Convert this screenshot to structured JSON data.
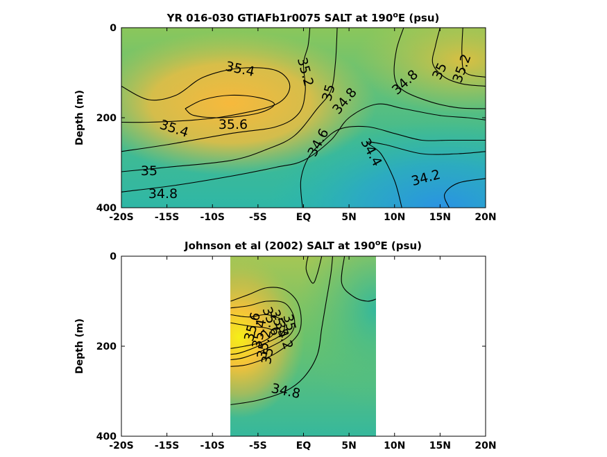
{
  "chart_data": [
    {
      "type": "contour",
      "title_main": "YR 016-030 GTIAFb1r0075 SALT at 190",
      "title_sup": "o",
      "title_end": "E (psu)",
      "ylabel": "Depth (m)",
      "xlim": [
        -20,
        20
      ],
      "ylim": [
        0,
        400
      ],
      "y_reversed": true,
      "x_ticks": [
        -20,
        -15,
        -10,
        -5,
        0,
        5,
        10,
        15,
        20
      ],
      "x_tick_labels": [
        "-20S",
        "-15S",
        "-10S",
        "-5S",
        "EQ",
        "5N",
        "10N",
        "15N",
        "20N"
      ],
      "y_ticks": [
        0,
        200,
        400
      ],
      "y_tick_labels": [
        "0",
        "200",
        "400"
      ],
      "data_coverage_x": [
        -20,
        20
      ],
      "contour_labels": [
        "35.4",
        "35.2",
        "35",
        "34.8",
        "34.8",
        "35",
        "35.2",
        "35.6",
        "35.4",
        "35",
        "34.8",
        "34.6",
        "34.4",
        "34.2"
      ],
      "contours": [
        {
          "level": 35.4,
          "points": [
            [
              -20,
              130
            ],
            [
              -17,
              160
            ],
            [
              -14,
              150
            ],
            [
              -11,
              110
            ],
            [
              -7,
              90
            ],
            [
              -3,
              95
            ],
            [
              -1.5,
              130
            ],
            [
              -3,
              170
            ],
            [
              -8,
              195
            ],
            [
              -12,
              205
            ],
            [
              -17,
              210
            ],
            [
              -20,
              210
            ]
          ]
        },
        {
          "level": 35.6,
          "points": [
            [
              -13,
              180
            ],
            [
              -11,
              160
            ],
            [
              -8,
              150
            ],
            [
              -5,
              155
            ],
            [
              -3.2,
              170
            ],
            [
              -5,
              190
            ],
            [
              -9,
              200
            ],
            [
              -12,
              195
            ],
            [
              -13,
              180
            ]
          ]
        },
        {
          "level": 35.2,
          "points": [
            [
              -20,
              275
            ],
            [
              -15,
              260
            ],
            [
              -8,
              235
            ],
            [
              -3,
              220
            ],
            [
              -0.5,
              190
            ],
            [
              0.2,
              140
            ],
            [
              0,
              80
            ],
            [
              0.5,
              40
            ],
            [
              0.7,
              0
            ]
          ]
        },
        {
          "level": 35.0,
          "points": [
            [
              -20,
              320
            ],
            [
              -15,
              310
            ],
            [
              -8,
              295
            ],
            [
              -4,
              270
            ],
            [
              -1,
              240
            ],
            [
              1.5,
              180
            ],
            [
              3,
              140
            ],
            [
              3.5,
              80
            ],
            [
              3.7,
              0
            ]
          ]
        },
        {
          "level": 34.8,
          "points": [
            [
              -20,
              365
            ],
            [
              -14,
              350
            ],
            [
              -8,
              330
            ],
            [
              -3,
              310
            ],
            [
              0,
              295
            ],
            [
              3,
              250
            ],
            [
              5,
              200
            ],
            [
              8,
              170
            ],
            [
              11,
              180
            ],
            [
              15,
              195
            ],
            [
              18,
              200
            ],
            [
              20,
              205
            ]
          ]
        },
        {
          "level": 34.6,
          "points": [
            [
              -0.1,
              400
            ],
            [
              -0.3,
              340
            ],
            [
              0.5,
              290
            ],
            [
              2,
              255
            ],
            [
              4,
              225
            ],
            [
              7,
              220
            ],
            [
              10,
              235
            ],
            [
              13,
              250
            ],
            [
              16,
              250
            ],
            [
              20,
              250
            ]
          ]
        },
        {
          "level": 34.4,
          "points": [
            [
              10.8,
              400
            ],
            [
              10,
              340
            ],
            [
              8.5,
              280
            ],
            [
              7,
              255
            ],
            [
              9,
              260
            ],
            [
              13,
              280
            ],
            [
              17,
              280
            ],
            [
              20,
              275
            ]
          ]
        },
        {
          "level": 34.8,
          "points": [
            [
              11,
              0
            ],
            [
              10.2,
              50
            ],
            [
              10,
              110
            ],
            [
              11,
              140
            ],
            [
              14,
              165
            ],
            [
              17,
              178
            ],
            [
              20,
              180
            ]
          ]
        },
        {
          "level": 35.0,
          "points": [
            [
              15,
              0
            ],
            [
              14.5,
              40
            ],
            [
              14.2,
              80
            ],
            [
              15.5,
              110
            ],
            [
              17.5,
              125
            ],
            [
              20,
              130
            ]
          ]
        },
        {
          "level": 35.2,
          "points": [
            [
              17.5,
              0
            ],
            [
              17.4,
              60
            ],
            [
              17.8,
              100
            ],
            [
              20,
              110
            ]
          ]
        },
        {
          "level": 34.2,
          "points": [
            [
              16,
              400
            ],
            [
              15.5,
              370
            ],
            [
              17,
              345
            ],
            [
              20,
              335
            ]
          ]
        }
      ]
    },
    {
      "type": "contour",
      "title_main": "Johnson et al (2002) SALT at 190",
      "title_sup": "o",
      "title_end": "E (psu)",
      "ylabel": "Depth (m)",
      "xlim": [
        -20,
        20
      ],
      "ylim": [
        0,
        400
      ],
      "y_reversed": true,
      "x_ticks": [
        -20,
        -15,
        -10,
        -5,
        0,
        5,
        10,
        15,
        20
      ],
      "x_tick_labels": [
        "-20S",
        "-15S",
        "-10S",
        "-5S",
        "EQ",
        "5N",
        "10N",
        "15N",
        "20N"
      ],
      "y_ticks": [
        0,
        200,
        400
      ],
      "y_tick_labels": [
        "0",
        "200",
        "400"
      ],
      "data_coverage_x": [
        -8,
        8
      ],
      "contour_labels": [
        "34.8",
        "35",
        "35.2",
        "35.4",
        "35.6",
        "35.6",
        "35.4",
        "35.2",
        "35"
      ],
      "contours": [
        {
          "level": 34.8,
          "points": [
            [
              -8,
              330
            ],
            [
              -5,
              320
            ],
            [
              -2,
              300
            ],
            [
              0,
              270
            ],
            [
              1.5,
              220
            ],
            [
              2,
              160
            ],
            [
              2.5,
              100
            ],
            [
              3,
              40
            ],
            [
              3.2,
              0
            ]
          ]
        },
        {
          "level": 35.0,
          "points": [
            [
              -8,
              100
            ],
            [
              -6,
              85
            ],
            [
              -4,
              70
            ],
            [
              -2,
              75
            ],
            [
              -0.5,
              110
            ],
            [
              -0.5,
              170
            ],
            [
              -3,
              215
            ],
            [
              -6,
              240
            ],
            [
              -8,
              245
            ]
          ]
        },
        {
          "level": 35.2,
          "points": [
            [
              -8,
              115
            ],
            [
              -6,
              110
            ],
            [
              -4,
              100
            ],
            [
              -2,
              105
            ],
            [
              -1,
              140
            ],
            [
              -1.5,
              175
            ],
            [
              -4,
              205
            ],
            [
              -6.5,
              225
            ],
            [
              -8,
              230
            ]
          ]
        },
        {
          "level": 35.4,
          "points": [
            [
              -8,
              130
            ],
            [
              -6,
              135
            ],
            [
              -4,
              130
            ],
            [
              -2.2,
              145
            ],
            [
              -2.5,
              175
            ],
            [
              -5,
              200
            ],
            [
              -7,
              215
            ],
            [
              -8,
              218
            ]
          ]
        },
        {
          "level": 35.6,
          "points": [
            [
              -8,
              148
            ],
            [
              -6,
              155
            ],
            [
              -4,
              160
            ],
            [
              -3.2,
              170
            ],
            [
              -4.5,
              190
            ],
            [
              -6.5,
              200
            ],
            [
              -8,
              205
            ]
          ]
        },
        {
          "level": 34.8,
          "points": [
            [
              4.5,
              0
            ],
            [
              4.2,
              60
            ],
            [
              5.5,
              90
            ],
            [
              7,
              100
            ],
            [
              8,
              95
            ]
          ]
        },
        {
          "level": 35.0,
          "points": [
            [
              0.5,
              0
            ],
            [
              0.3,
              30
            ],
            [
              1,
              60
            ],
            [
              1.5,
              40
            ],
            [
              2,
              0
            ]
          ]
        }
      ]
    }
  ]
}
